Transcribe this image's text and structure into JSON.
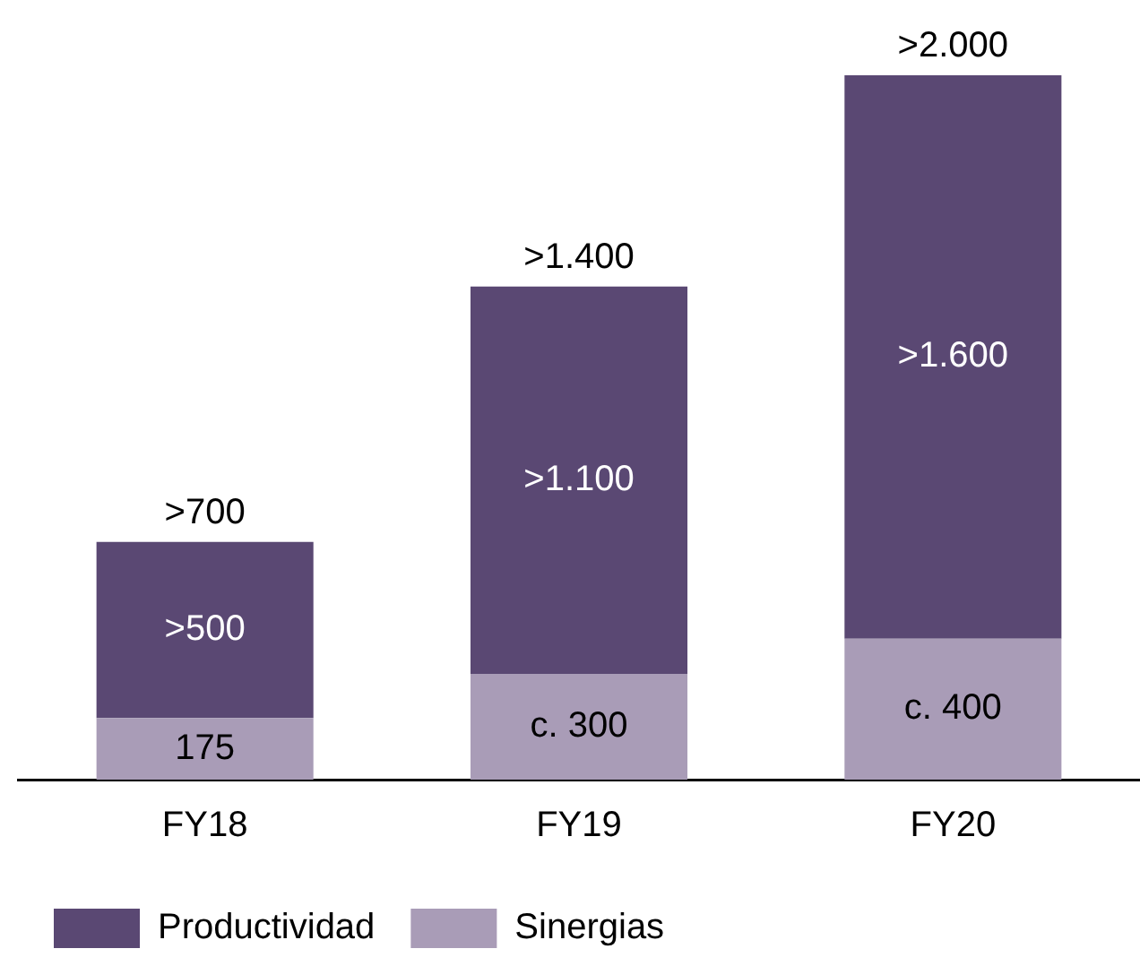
{
  "chart_data": {
    "type": "bar",
    "stacked": true,
    "categories": [
      "FY18",
      "FY19",
      "FY20"
    ],
    "series": [
      {
        "name": "Sinergias",
        "color": "#a99cb7",
        "values": [
          175,
          300,
          400
        ],
        "value_labels": [
          "175",
          "c. 300",
          "c. 400"
        ]
      },
      {
        "name": "Productividad",
        "color": "#5a4873",
        "values": [
          500,
          1100,
          1600
        ],
        "value_labels": [
          ">500",
          ">1.100",
          ">1.600"
        ]
      }
    ],
    "totals": [
      ">700",
      ">1.400",
      ">2.000"
    ],
    "legend": "bottom left",
    "grid": false
  }
}
